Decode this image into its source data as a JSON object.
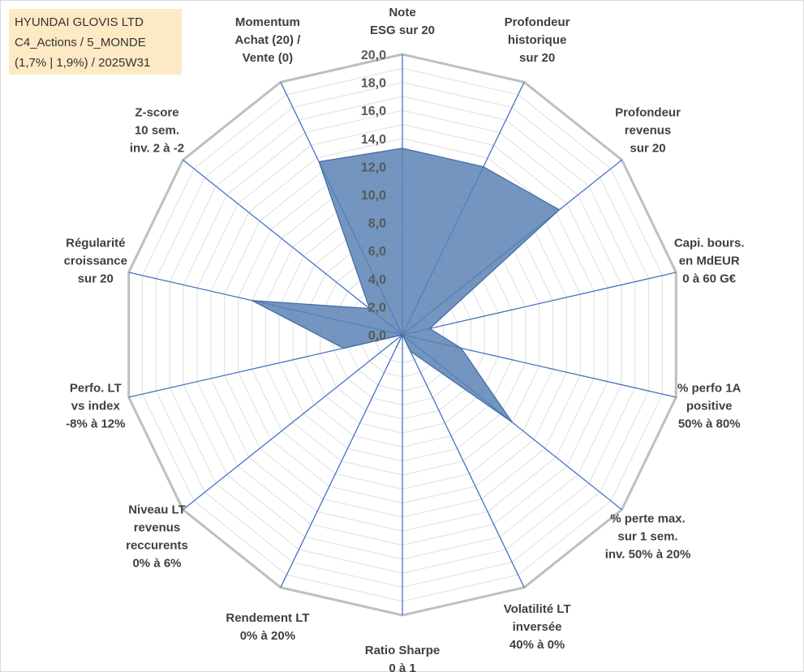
{
  "title_box": {
    "line1": "HYUNDAI GLOVIS LTD",
    "line2": "C4_Actions / 5_MONDE",
    "line3": "(1,7% | 1,9%) / 2025W31"
  },
  "chart_data": {
    "type": "radar",
    "range": [
      0,
      20
    ],
    "ticks": [
      "0,0",
      "2,0",
      "4,0",
      "6,0",
      "8,0",
      "10,0",
      "12,0",
      "14,0",
      "16,0",
      "18,0",
      "20,0"
    ],
    "grid_levels": 20,
    "axes": [
      {
        "label": [
          "Note",
          "ESG sur 20"
        ],
        "value": 13.3
      },
      {
        "label": [
          "Profondeur",
          "historique",
          "sur 20"
        ],
        "value": 13.3
      },
      {
        "label": [
          "Profondeur",
          "revenus",
          "sur 20"
        ],
        "value": 14.3
      },
      {
        "label": [
          "Capi. bours.",
          "en MdEUR",
          "0 à 60 G€"
        ],
        "value": 2.0
      },
      {
        "label": [
          "% perfo 1A",
          "positive",
          "50% à 80%"
        ],
        "value": 4.3
      },
      {
        "label": [
          "% perte max.",
          "sur 1 sem.",
          "inv. 50% à 20%"
        ],
        "value": 10.0
      },
      {
        "label": [
          "Volatilité LT",
          "inversée",
          "40% à 0%"
        ],
        "value": 1.3
      },
      {
        "label": [
          "Ratio Sharpe",
          "0 à 1"
        ],
        "value": 0.0
      },
      {
        "label": [
          "Rendement LT",
          "0% à 20%"
        ],
        "value": 1.0
      },
      {
        "label": [
          "Niveau LT",
          "revenus",
          "reccurents",
          "0% à 6%"
        ],
        "value": 0.0
      },
      {
        "label": [
          "Perfo. LT",
          "vs index",
          "-8% à 12%"
        ],
        "value": 4.3
      },
      {
        "label": [
          "Régularité",
          "croissance",
          "sur 20"
        ],
        "value": 11.0
      },
      {
        "label": [
          "Z-score",
          "10 sem.",
          "inv. 2 à -2"
        ],
        "value": 3.0
      },
      {
        "label": [
          "Momentum",
          "Achat (20) /",
          "Vente (0)"
        ],
        "value": 13.7
      }
    ],
    "colors": {
      "fill": "#5a82b4",
      "stroke": "#3e6aa6",
      "axis": "#4472c4",
      "outer_grid": "#bfbfbf",
      "minor_grid": "#e3e3e3"
    }
  }
}
